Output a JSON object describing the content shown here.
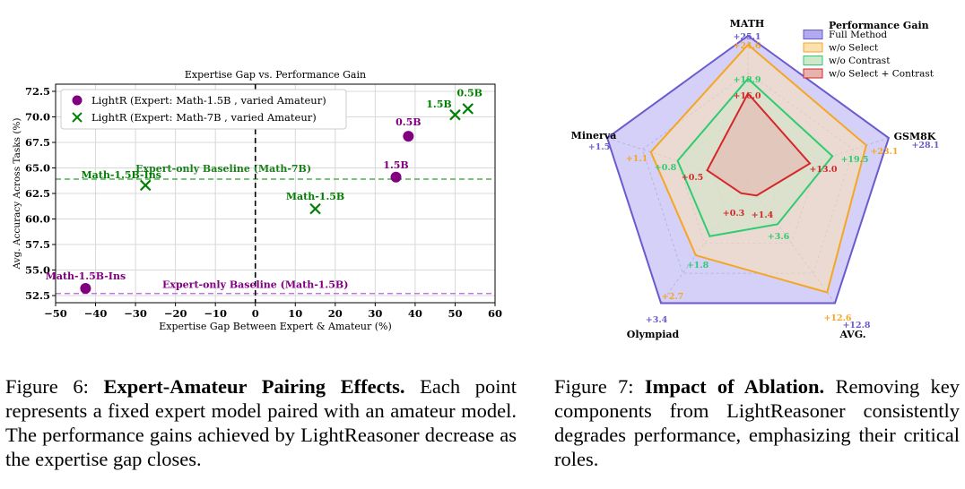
{
  "figure6": {
    "chart_data": {
      "type": "scatter",
      "title": "Expertise Gap vs. Performance Gain",
      "xlabel": "Expertise Gap Between Expert & Amateur (%)",
      "ylabel": "Avg. Accuracy Across Tasks (%)",
      "xlim": [
        -50,
        60
      ],
      "ylim": [
        51.8,
        73.2
      ],
      "xticks": [
        "−50",
        "−40",
        "−30",
        "−20",
        "−10",
        "0",
        "10",
        "20",
        "30",
        "40",
        "50",
        "60"
      ],
      "xtick_values": [
        -50,
        -40,
        -30,
        -20,
        -10,
        0,
        10,
        20,
        30,
        40,
        50,
        60
      ],
      "yticks": [
        "52.5",
        "55.0",
        "57.5",
        "60.0",
        "62.5",
        "65.0",
        "67.5",
        "70.0",
        "72.5"
      ],
      "ytick_values": [
        52.5,
        55.0,
        57.5,
        60.0,
        62.5,
        65.0,
        67.5,
        70.0,
        72.5
      ],
      "grid": true,
      "legend_position": "top-left",
      "series": [
        {
          "name": "LightR (Expert: Math-1.5B , varied Amateur)",
          "marker": "circle",
          "color": "#800080",
          "points": [
            {
              "x": -42.5,
              "y": 53.2,
              "label": "Math-1.5B-Ins"
            },
            {
              "x": 35.2,
              "y": 64.1,
              "label": "1.5B"
            },
            {
              "x": 38.3,
              "y": 68.1,
              "label": "0.5B"
            }
          ]
        },
        {
          "name": "LightR (Expert: Math-7B , varied Amateur)",
          "marker": "x",
          "color": "#008000",
          "points": [
            {
              "x": -27.5,
              "y": 63.3,
              "label": "Math-1.5B-Ins"
            },
            {
              "x": 15.0,
              "y": 61.0,
              "label": "Math-1.5B"
            },
            {
              "x": 50.0,
              "y": 70.2,
              "label": "1.5B"
            },
            {
              "x": 53.2,
              "y": 70.8,
              "label": "0.5B"
            }
          ]
        }
      ],
      "baselines": [
        {
          "label": "Expert-only Baseline (Math-7B)",
          "y": 63.9,
          "color": "#2ca02c"
        },
        {
          "label": "Expert-only Baseline (Math-1.5B)",
          "y": 52.7,
          "color": "#b266d9"
        }
      ],
      "vline_x": 0
    }
  },
  "figure7": {
    "chart_data": {
      "type": "radar",
      "axes": [
        "MATH",
        "GSM8K",
        "AVG.",
        "Olympiad",
        "Minerva"
      ],
      "legend_title": "Performance Gain",
      "series": [
        {
          "name": "Full Method",
          "color": "#6a5acd",
          "fill": "#b0aaf0",
          "values": [
            1.0,
            1.0,
            1.0,
            1.0,
            1.0
          ],
          "labels": [
            "+25.1",
            "+28.1",
            "+12.8",
            "+3.4",
            "+1.5"
          ]
        },
        {
          "name": "w/o Select",
          "color": "#f5a623",
          "fill": "#fbe1b2",
          "values": [
            0.94,
            0.84,
            0.91,
            0.6,
            0.69
          ],
          "labels": [
            "+24.6",
            "+23.1",
            "+12.6",
            "+2.7",
            "+1.1"
          ]
        },
        {
          "name": "w/o Contrast",
          "color": "#2ecc71",
          "fill": "#cfe8cb",
          "values": [
            0.71,
            0.6,
            0.34,
            0.44,
            0.5
          ],
          "labels": [
            "+18.9",
            "+19.5",
            "+3.6",
            "+1.8",
            "+0.8"
          ]
        },
        {
          "name": "w/o Select + Contrast",
          "color": "#d62728",
          "fill": "#e6b3ae",
          "values": [
            0.61,
            0.44,
            0.1,
            0.08,
            0.29
          ],
          "labels": [
            "+16.0",
            "+13.0",
            "+1.4",
            "+0.3",
            "+0.5"
          ]
        }
      ]
    }
  },
  "captions": {
    "fig6_prefix": "Figure 6: ",
    "fig6_title": "Expert-Amateur Pairing Effects.",
    "fig6_body": " Each point represents a fixed expert model paired with an amateur model. The performance gains achieved by LightReasoner decrease as the expertise gap closes.",
    "fig7_prefix": "Figure 7: ",
    "fig7_title": "Impact of Ablation.",
    "fig7_body": " Removing key components from LightReasoner consistently degrades performance, emphasizing their critical roles."
  }
}
